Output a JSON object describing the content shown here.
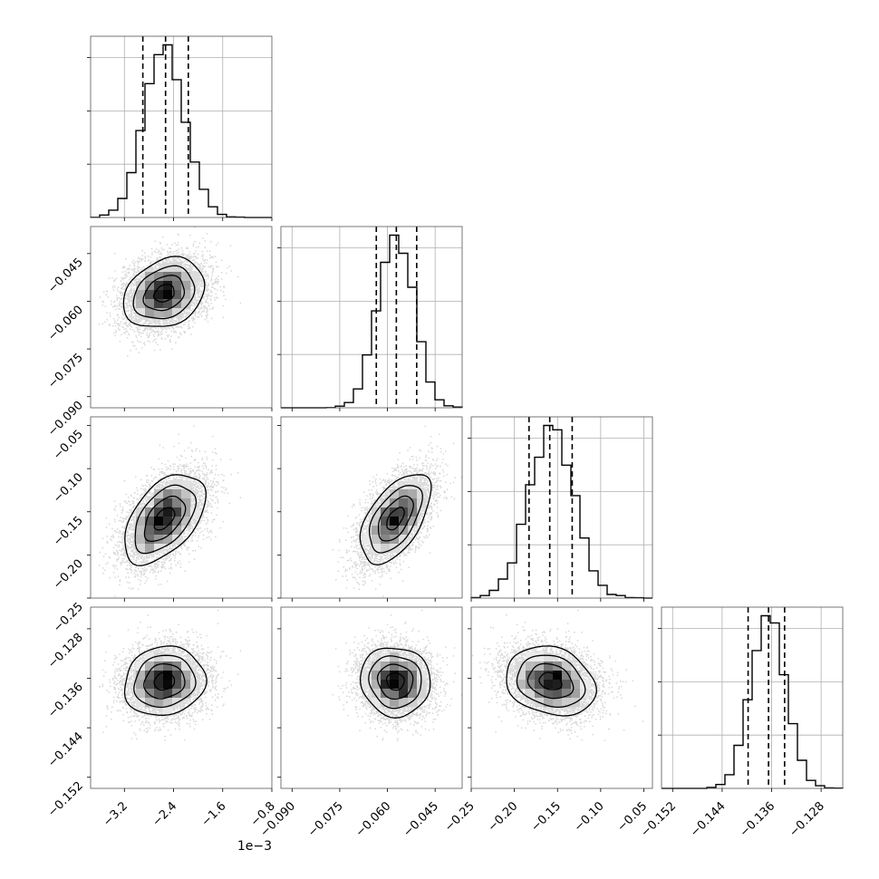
{
  "chart_data": {
    "type": "corner",
    "grid": true,
    "scatter_color": "#555555",
    "line_color": "#000000",
    "quantile_line_style": "dashed",
    "offset_label": "1e−3",
    "parameters": [
      {
        "range": [
          -3.75,
          -0.8
        ],
        "scale": 0.001,
        "ticks": [
          -3.2,
          -2.4,
          -1.6,
          -0.8
        ],
        "tick_labels": [
          "−3.2",
          "−2.4",
          "−1.6",
          "−0.8"
        ],
        "mean": -2.55,
        "sd": 0.33,
        "quantiles": [
          -2.9,
          -2.53,
          -2.16
        ]
      },
      {
        "range": [
          -0.0935,
          -0.0365
        ],
        "ticks": [
          -0.09,
          -0.075,
          -0.06,
          -0.045
        ],
        "tick_labels": [
          "−0.090",
          "−0.075",
          "−0.060",
          "−0.045"
        ],
        "mean": -0.0575,
        "sd": 0.0055,
        "quantiles": [
          -0.0635,
          -0.0572,
          -0.0508
        ]
      },
      {
        "range": [
          -0.25,
          -0.04
        ],
        "ticks": [
          -0.25,
          -0.2,
          -0.15,
          -0.1,
          -0.05
        ],
        "tick_labels": [
          "−0.25",
          "−0.20",
          "−0.15",
          "−0.10",
          "−0.05"
        ],
        "mean": -0.158,
        "sd": 0.026,
        "quantiles": [
          -0.183,
          -0.159,
          -0.133
        ]
      },
      {
        "range": [
          -0.1538,
          -0.1245
        ],
        "ticks": [
          -0.152,
          -0.144,
          -0.136,
          -0.128
        ],
        "tick_labels": [
          "−0.152",
          "−0.144",
          "−0.136",
          "−0.128"
        ],
        "mean": -0.1365,
        "sd": 0.0028,
        "quantiles": [
          -0.1398,
          -0.1365,
          -0.1339
        ]
      }
    ],
    "correlations": [
      [
        1,
        0.25,
        0.5,
        0.1
      ],
      [
        0.25,
        1,
        0.55,
        -0.05
      ],
      [
        0.5,
        0.55,
        1,
        -0.2
      ],
      [
        0.1,
        -0.05,
        -0.2,
        1
      ]
    ]
  }
}
